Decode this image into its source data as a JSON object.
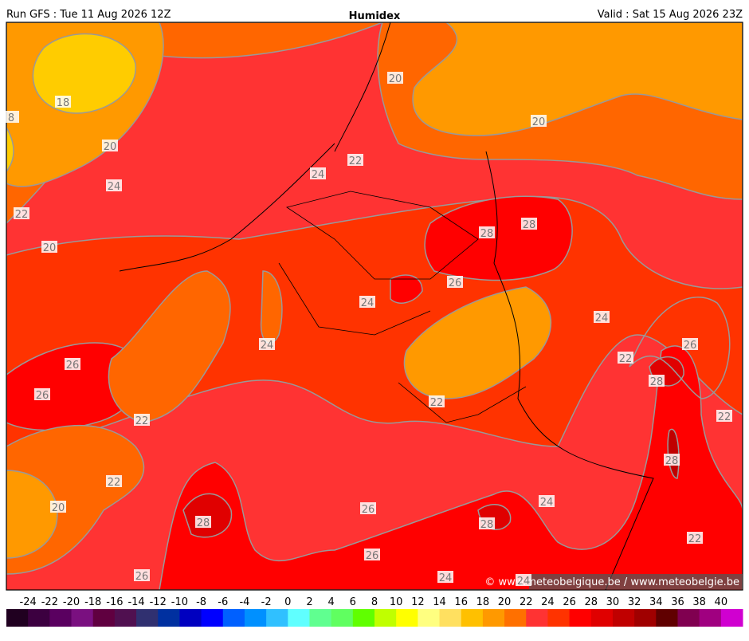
{
  "header": {
    "left": "Run GFS : Tue 11 Aug 2026 12Z",
    "title": "Humidex",
    "right": "Valid : Sat 15 Aug 2026 23Z"
  },
  "contour_labels": [
    18,
    8,
    20,
    20,
    20,
    24,
    22,
    24,
    22,
    20,
    28,
    28,
    26,
    24,
    24,
    24,
    26,
    22,
    26,
    28,
    26,
    22,
    22,
    22,
    28,
    22,
    20,
    26,
    24,
    28,
    28,
    22,
    26,
    26,
    24,
    24
  ],
  "colorbar": {
    "ticks": [
      -24,
      -22,
      -20,
      -18,
      -16,
      -14,
      -12,
      -10,
      -8,
      -6,
      -4,
      -2,
      0,
      2,
      4,
      6,
      8,
      10,
      12,
      14,
      16,
      18,
      20,
      22,
      24,
      26,
      28,
      30,
      32,
      34,
      36,
      38,
      40
    ],
    "colors": [
      "#200020",
      "#3c0040",
      "#5a0060",
      "#7a1080",
      "#600040",
      "#501050",
      "#303070",
      "#0030a0",
      "#0000c0",
      "#0000ff",
      "#0060ff",
      "#0090ff",
      "#30c0ff",
      "#60ffff",
      "#60ff90",
      "#60ff60",
      "#60ff00",
      "#c0ff00",
      "#ffff00",
      "#ffff80",
      "#ffe060",
      "#ffc000",
      "#ff9900",
      "#ff7000",
      "#ff3333",
      "#ff3300",
      "#ff0000",
      "#e00000",
      "#c00000",
      "#a00000",
      "#600000",
      "#800050",
      "#a00080",
      "#d000d0"
    ]
  },
  "copyright": "© www.meteobelgique.be / www.meteobelgie.be"
}
